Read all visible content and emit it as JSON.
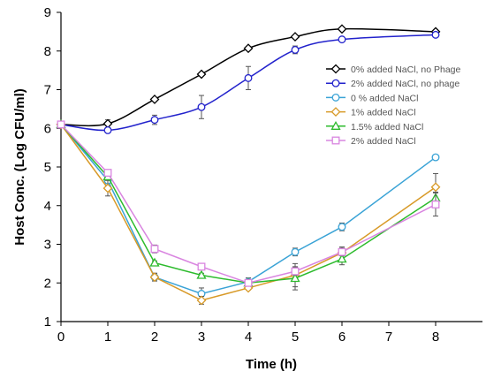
{
  "chart_data": {
    "type": "line",
    "xlabel": "Time (h)",
    "ylabel": "Host Conc. (Log CFU/ml)",
    "xlim": [
      0,
      9
    ],
    "ylim": [
      1,
      9
    ],
    "x_ticks": [
      0,
      1,
      2,
      3,
      4,
      5,
      6,
      7,
      8
    ],
    "y_ticks": [
      1,
      2,
      3,
      4,
      5,
      6,
      7,
      8,
      9
    ],
    "grid": false,
    "legend_position": "right",
    "series": [
      {
        "name": "0% added NaCl, no Phage",
        "color": "#000000",
        "marker": "diamond",
        "smooth": true,
        "x": [
          0,
          1,
          2,
          3,
          4,
          5,
          6,
          8
        ],
        "y": [
          6.1,
          6.12,
          6.75,
          7.4,
          8.07,
          8.37,
          8.57,
          8.5
        ],
        "err": [
          0,
          0.1,
          0,
          0,
          0,
          0,
          0,
          0
        ]
      },
      {
        "name": "2% added NaCl, no phage",
        "color": "#2222cc",
        "marker": "circle",
        "smooth": true,
        "x": [
          0,
          1,
          2,
          3,
          4,
          5,
          6,
          8
        ],
        "y": [
          6.1,
          5.95,
          6.22,
          6.55,
          7.3,
          8.03,
          8.3,
          8.42
        ],
        "err": [
          0,
          0,
          0.12,
          0.3,
          0.3,
          0.1,
          0,
          0
        ]
      },
      {
        "name": "0 % added NaCl",
        "color": "#3aa3d6",
        "marker": "circle",
        "smooth": false,
        "x": [
          0,
          1,
          2,
          3,
          4,
          5,
          6,
          8
        ],
        "y": [
          6.1,
          4.65,
          2.15,
          1.72,
          2.03,
          2.8,
          3.45,
          5.25
        ],
        "err": [
          0,
          0.08,
          0.1,
          0.15,
          0.1,
          0.1,
          0.1,
          0.05
        ]
      },
      {
        "name": "1% added NaCl",
        "color": "#d89a28",
        "marker": "diamond",
        "smooth": false,
        "x": [
          0,
          1,
          2,
          3,
          4,
          5,
          6,
          8
        ],
        "y": [
          6.1,
          4.45,
          2.15,
          1.55,
          1.87,
          2.2,
          2.78,
          4.48
        ],
        "err": [
          0,
          0.2,
          0.1,
          0.1,
          0.05,
          0.3,
          0.15,
          0.35
        ]
      },
      {
        "name": "1.5% added NaCl",
        "color": "#2dbb2d",
        "marker": "triangle",
        "smooth": false,
        "x": [
          0,
          1,
          2,
          3,
          4,
          5,
          6,
          8
        ],
        "y": [
          6.1,
          4.75,
          2.52,
          2.2,
          2.0,
          2.12,
          2.62,
          4.2
        ],
        "err": [
          0,
          0.05,
          0.05,
          0.05,
          0.05,
          0.3,
          0.15,
          0.15
        ]
      },
      {
        "name": "2% added NaCl",
        "color": "#d985e0",
        "marker": "square",
        "smooth": false,
        "x": [
          0,
          1,
          2,
          3,
          4,
          5,
          6,
          8
        ],
        "y": [
          6.1,
          4.85,
          2.88,
          2.42,
          2.0,
          2.3,
          2.8,
          4.03
        ],
        "err": [
          0,
          0.05,
          0.1,
          0.05,
          0.05,
          0.1,
          0.1,
          0.3
        ]
      }
    ]
  }
}
